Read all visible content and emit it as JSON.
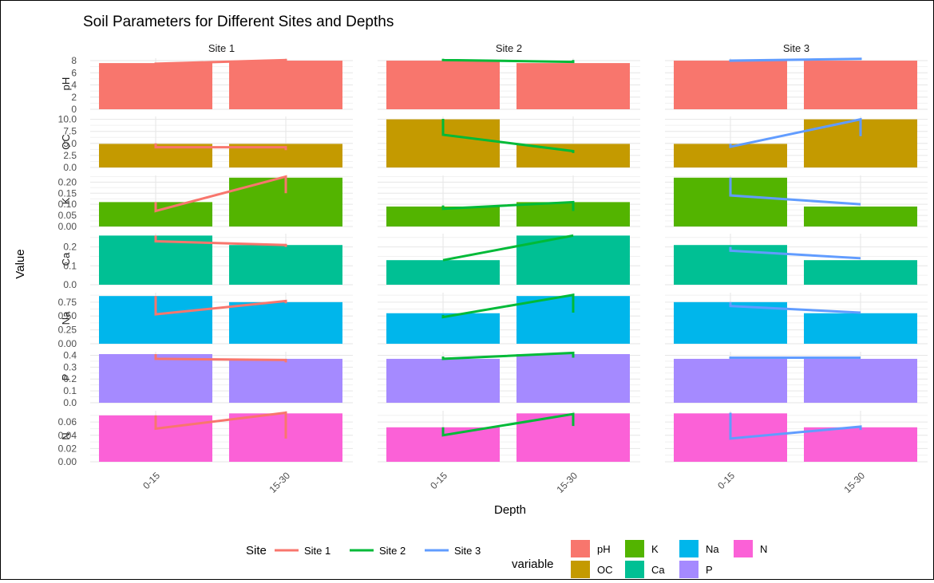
{
  "chart_data": {
    "type": "bar",
    "title": "Soil Parameters for Different Sites and Depths",
    "xlabel": "Depth",
    "ylabel": "Value",
    "facet_columns": [
      "Site 1",
      "Site 2",
      "Site 3"
    ],
    "categories": [
      "0-15",
      "15-30"
    ],
    "rows": [
      {
        "variable": "pH",
        "ylim": [
          0,
          8.4
        ],
        "ticks": [
          "0",
          "2",
          "4",
          "6",
          "8"
        ],
        "tickvals": [
          0,
          2,
          4,
          6,
          8
        ],
        "values": {
          "Site 1": [
            7.6,
            8.0
          ],
          "Site 2": [
            8.0,
            7.6
          ],
          "Site 3": [
            8.0,
            8.0
          ]
        },
        "line": {
          "Site 1": [
            [
              7.5,
              7.7
            ],
            [
              7.8,
              8.1
            ]
          ],
          "Site 2": [
            [
              8.1,
              8.3
            ],
            [
              8.1,
              7.8
            ]
          ],
          "Site 3": [
            [
              8.0,
              8.2
            ],
            [
              8.1,
              8.3
            ]
          ]
        }
      },
      {
        "variable": "OC",
        "ylim": [
          0,
          10.6
        ],
        "ticks": [
          "0.0",
          "2.5",
          "5.0",
          "7.5",
          "10.0"
        ],
        "tickvals": [
          0,
          2.5,
          5,
          7.5,
          10
        ],
        "values": {
          "Site 1": [
            4.9,
            4.9
          ],
          "Site 2": [
            10.0,
            4.9
          ],
          "Site 3": [
            4.9,
            10.0
          ]
        },
        "line": {
          "Site 1": [
            [
              4.2,
              5.0
            ],
            [
              3.6,
              4.2
            ]
          ],
          "Site 2": [
            [
              6.8,
              10.1
            ],
            [
              3.0,
              3.4
            ]
          ],
          "Site 3": [
            [
              4.3,
              4.9
            ],
            [
              6.5,
              10.0
            ]
          ]
        }
      },
      {
        "variable": "K",
        "ylim": [
          0,
          0.23
        ],
        "ticks": [
          "0.00",
          "0.05",
          "0.10",
          "0.15",
          "0.20"
        ],
        "tickvals": [
          0,
          0.05,
          0.1,
          0.15,
          0.2
        ],
        "values": {
          "Site 1": [
            0.11,
            0.22
          ],
          "Site 2": [
            0.09,
            0.11
          ],
          "Site 3": [
            0.22,
            0.09
          ]
        },
        "line": {
          "Site 1": [
            [
              0.07,
              0.11
            ],
            [
              0.15,
              0.225
            ]
          ],
          "Site 2": [
            [
              0.08,
              0.095
            ],
            [
              0.07,
              0.11
            ]
          ],
          "Site 3": [
            [
              0.14,
              0.22
            ],
            [
              0.1,
              0.1
            ]
          ]
        }
      },
      {
        "variable": "Ca",
        "ylim": [
          0,
          0.27
        ],
        "ticks": [
          "0.0",
          "0.1",
          "0.2"
        ],
        "tickvals": [
          0,
          0.1,
          0.2
        ],
        "values": {
          "Site 1": [
            0.26,
            0.21
          ],
          "Site 2": [
            0.13,
            0.26
          ],
          "Site 3": [
            0.21,
            0.13
          ]
        },
        "line": {
          "Site 1": [
            [
              0.23,
              0.26
            ],
            [
              0.2,
              0.21
            ]
          ],
          "Site 2": [
            [
              0.13,
              0.13
            ],
            [
              0.26,
              0.26
            ]
          ],
          "Site 3": [
            [
              0.18,
              0.2
            ],
            [
              0.14,
              0.14
            ]
          ]
        }
      },
      {
        "variable": "Na",
        "ylim": [
          0,
          0.92
        ],
        "ticks": [
          "0.00",
          "0.25",
          "0.50",
          "0.75"
        ],
        "tickvals": [
          0,
          0.25,
          0.5,
          0.75
        ],
        "values": {
          "Site 1": [
            0.86,
            0.75
          ],
          "Site 2": [
            0.55,
            0.86
          ],
          "Site 3": [
            0.75,
            0.55
          ]
        },
        "line": {
          "Site 1": [
            [
              0.53,
              0.86
            ],
            [
              0.73,
              0.77
            ]
          ],
          "Site 2": [
            [
              0.48,
              0.52
            ],
            [
              0.56,
              0.88
            ]
          ],
          "Site 3": [
            [
              0.68,
              0.75
            ],
            [
              0.56,
              0.56
            ]
          ]
        }
      },
      {
        "variable": "P",
        "ylim": [
          0,
          0.43
        ],
        "ticks": [
          "0.0",
          "0.1",
          "0.2",
          "0.3",
          "0.4"
        ],
        "tickvals": [
          0,
          0.1,
          0.2,
          0.3,
          0.4
        ],
        "values": {
          "Site 1": [
            0.41,
            0.37
          ],
          "Site 2": [
            0.37,
            0.41
          ],
          "Site 3": [
            0.37,
            0.37
          ]
        },
        "line": {
          "Site 1": [
            [
              0.37,
              0.41
            ],
            [
              0.34,
              0.36
            ]
          ],
          "Site 2": [
            [
              0.37,
              0.39
            ],
            [
              0.38,
              0.42
            ]
          ],
          "Site 3": [
            [
              0.38,
              0.39
            ],
            [
              0.38,
              0.38
            ]
          ]
        }
      },
      {
        "variable": "N",
        "ylim": [
          0,
          0.077
        ],
        "ticks": [
          "0.00",
          "0.02",
          "0.04",
          "0.06"
        ],
        "tickvals": [
          0,
          0.02,
          0.04,
          0.06
        ],
        "values": {
          "Site 1": [
            0.07,
            0.073
          ],
          "Site 2": [
            0.052,
            0.073
          ],
          "Site 3": [
            0.073,
            0.052
          ]
        },
        "line": {
          "Site 1": [
            [
              0.05,
              0.07
            ],
            [
              0.035,
              0.074
            ]
          ],
          "Site 2": [
            [
              0.04,
              0.052
            ],
            [
              0.054,
              0.072
            ]
          ],
          "Site 3": [
            [
              0.035,
              0.074
            ],
            [
              0.048,
              0.053
            ]
          ]
        }
      }
    ],
    "colors": {
      "fill": {
        "pH": "#F8766D",
        "OC": "#C49A00",
        "K": "#53B400",
        "Ca": "#00C094",
        "Na": "#00B6EB",
        "P": "#A58AFF",
        "N": "#FB61D7"
      },
      "site": {
        "Site 1": "#F8766D",
        "Site 2": "#00BA38",
        "Site 3": "#619CFF"
      }
    },
    "legend": {
      "position": "bottom",
      "site_title": "Site",
      "site_entries": [
        "Site 1",
        "Site 2",
        "Site 3"
      ],
      "variable_title": "variable",
      "variable_entries": [
        "pH",
        "OC",
        "K",
        "Ca",
        "Na",
        "P",
        "N"
      ]
    },
    "grid": true
  }
}
